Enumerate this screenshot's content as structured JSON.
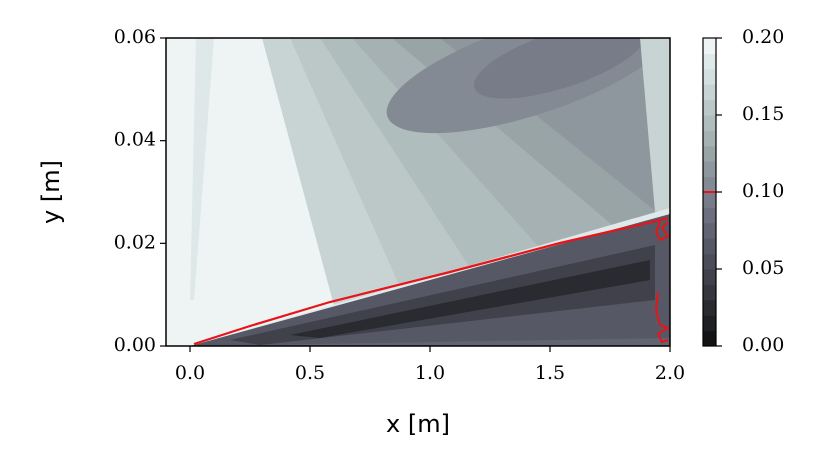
{
  "chart_data": {
    "type": "contour",
    "xlabel": "x [m]",
    "ylabel": "y [m]",
    "xlim": [
      -0.1,
      2.0
    ],
    "ylim": [
      0,
      0.06
    ],
    "xticks": [
      {
        "value": 0,
        "label": "0.0"
      },
      {
        "value": 0.5,
        "label": "0.5"
      },
      {
        "value": 1,
        "label": "1.0"
      },
      {
        "value": 1.5,
        "label": "1.5"
      },
      {
        "value": 2,
        "label": "2.0"
      }
    ],
    "yticks": [
      {
        "value": 0,
        "label": "0.00"
      },
      {
        "value": 0.02,
        "label": "0.02"
      },
      {
        "value": 0.04,
        "label": "0.04"
      },
      {
        "value": 0.06,
        "label": "0.06"
      }
    ],
    "clim": [
      0,
      0.2
    ],
    "cticks": [
      {
        "value": 0,
        "label": "0.00"
      },
      {
        "value": 0.05,
        "label": "0.05"
      },
      {
        "value": 0.1,
        "label": "0.10"
      },
      {
        "value": 0.15,
        "label": "0.15"
      },
      {
        "value": 0.2,
        "label": "0.20"
      }
    ],
    "colormap": [
      "#141416",
      "#1f2024",
      "#2a2b31",
      "#35363e",
      "#40414b",
      "#4b4d58",
      "#565865",
      "#616472",
      "#6c707e",
      "#777c88",
      "#838a93",
      "#8e979d",
      "#99a4a7",
      "#a5b1b2",
      "#b0bdbd",
      "#bcc8c8",
      "#c8d4d4",
      "#d4dfdf",
      "#e0e9e9",
      "#eef4f4"
    ],
    "contour_level": 0.1,
    "contour_color": "#e8141a"
  }
}
